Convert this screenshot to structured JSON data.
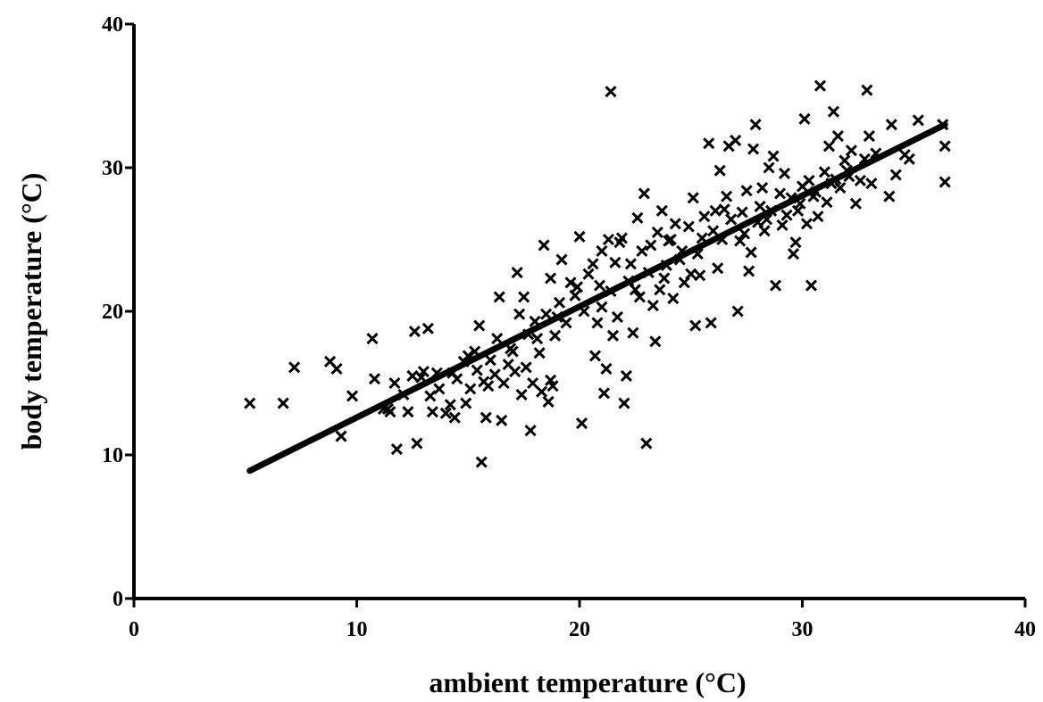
{
  "chart_data": {
    "type": "scatter",
    "title": "",
    "xlabel": "ambient temperature (°C)",
    "ylabel": "body temperature (°C)",
    "xlim": [
      0,
      40
    ],
    "ylim": [
      0,
      40
    ],
    "x_ticks": [
      0,
      10,
      20,
      30,
      40
    ],
    "y_ticks": [
      0,
      10,
      20,
      30,
      40
    ],
    "x_tick_labels": [
      "0",
      "10",
      "20",
      "30",
      "40"
    ],
    "y_tick_labels": [
      "0",
      "10",
      "20",
      "30",
      "40"
    ],
    "grid": false,
    "marker": "x-cross",
    "marker_color": "#000000",
    "points": [
      [
        5.2,
        13.6
      ],
      [
        6.7,
        13.6
      ],
      [
        7.2,
        16.1
      ],
      [
        8.8,
        16.5
      ],
      [
        9.1,
        16.0
      ],
      [
        9.3,
        11.3
      ],
      [
        9.8,
        14.1
      ],
      [
        10.7,
        18.1
      ],
      [
        10.8,
        15.3
      ],
      [
        11.2,
        13.2
      ],
      [
        11.5,
        13.0
      ],
      [
        11.7,
        15.0
      ],
      [
        11.8,
        10.4
      ],
      [
        12.1,
        14.2
      ],
      [
        12.3,
        13.0
      ],
      [
        12.5,
        15.5
      ],
      [
        12.6,
        18.6
      ],
      [
        12.7,
        10.8
      ],
      [
        13.0,
        15.8
      ],
      [
        13.2,
        18.8
      ],
      [
        13.3,
        14.1
      ],
      [
        13.4,
        13.0
      ],
      [
        13.6,
        15.7
      ],
      [
        13.7,
        14.6
      ],
      [
        14.0,
        12.9
      ],
      [
        14.2,
        13.5
      ],
      [
        14.4,
        12.6
      ],
      [
        14.5,
        15.3
      ],
      [
        14.8,
        16.5
      ],
      [
        14.9,
        13.6
      ],
      [
        15.0,
        16.9
      ],
      [
        15.1,
        14.6
      ],
      [
        15.3,
        17.2
      ],
      [
        15.4,
        15.9
      ],
      [
        15.5,
        19.0
      ],
      [
        15.6,
        9.5
      ],
      [
        15.7,
        15.1
      ],
      [
        15.8,
        12.6
      ],
      [
        16.0,
        16.6
      ],
      [
        16.2,
        15.6
      ],
      [
        16.3,
        18.1
      ],
      [
        16.4,
        21.0
      ],
      [
        16.5,
        12.4
      ],
      [
        16.6,
        15.0
      ],
      [
        16.8,
        16.3
      ],
      [
        17.0,
        17.2
      ],
      [
        17.2,
        22.7
      ],
      [
        17.3,
        19.8
      ],
      [
        17.4,
        14.2
      ],
      [
        17.5,
        21.0
      ],
      [
        17.6,
        16.1
      ],
      [
        17.7,
        18.4
      ],
      [
        17.8,
        11.7
      ],
      [
        17.9,
        15.0
      ],
      [
        18.0,
        19.3
      ],
      [
        18.2,
        17.1
      ],
      [
        18.3,
        14.4
      ],
      [
        18.4,
        24.6
      ],
      [
        18.5,
        19.8
      ],
      [
        18.6,
        13.7
      ],
      [
        18.7,
        22.3
      ],
      [
        18.8,
        14.8
      ],
      [
        18.9,
        18.3
      ],
      [
        19.1,
        20.6
      ],
      [
        19.2,
        23.6
      ],
      [
        19.4,
        19.2
      ],
      [
        19.6,
        22.0
      ],
      [
        19.8,
        21.1
      ],
      [
        20.0,
        25.2
      ],
      [
        20.1,
        12.2
      ],
      [
        20.2,
        20.0
      ],
      [
        20.4,
        22.6
      ],
      [
        20.6,
        23.3
      ],
      [
        20.7,
        16.9
      ],
      [
        20.8,
        19.2
      ],
      [
        21.0,
        24.2
      ],
      [
        21.1,
        14.3
      ],
      [
        21.2,
        16.0
      ],
      [
        21.4,
        21.4
      ],
      [
        21.4,
        35.3
      ],
      [
        21.5,
        18.3
      ],
      [
        21.6,
        23.4
      ],
      [
        21.7,
        19.6
      ],
      [
        21.8,
        24.8
      ],
      [
        22.0,
        13.6
      ],
      [
        22.1,
        15.5
      ],
      [
        22.2,
        22.1
      ],
      [
        22.4,
        18.5
      ],
      [
        22.6,
        26.5
      ],
      [
        22.7,
        21.0
      ],
      [
        22.8,
        24.2
      ],
      [
        22.9,
        28.2
      ],
      [
        23.0,
        10.8
      ],
      [
        23.1,
        22.7
      ],
      [
        23.2,
        24.6
      ],
      [
        23.3,
        20.4
      ],
      [
        23.4,
        17.9
      ],
      [
        23.5,
        25.5
      ],
      [
        23.7,
        27.0
      ],
      [
        23.8,
        22.3
      ],
      [
        24.0,
        24.9
      ],
      [
        24.2,
        20.9
      ],
      [
        24.3,
        26.1
      ],
      [
        24.5,
        23.6
      ],
      [
        24.7,
        22.0
      ],
      [
        24.9,
        25.9
      ],
      [
        25.1,
        27.9
      ],
      [
        25.2,
        19.0
      ],
      [
        25.3,
        24.0
      ],
      [
        25.4,
        22.5
      ],
      [
        25.6,
        26.6
      ],
      [
        25.8,
        31.7
      ],
      [
        25.9,
        19.2
      ],
      [
        26.0,
        25.6
      ],
      [
        26.1,
        27.0
      ],
      [
        26.2,
        23.0
      ],
      [
        26.3,
        29.8
      ],
      [
        26.4,
        25.0
      ],
      [
        26.6,
        28.0
      ],
      [
        26.7,
        31.5
      ],
      [
        26.8,
        26.4
      ],
      [
        27.0,
        31.9
      ],
      [
        27.1,
        20.0
      ],
      [
        27.2,
        24.9
      ],
      [
        27.3,
        26.9
      ],
      [
        27.5,
        28.4
      ],
      [
        27.6,
        22.8
      ],
      [
        27.7,
        24.1
      ],
      [
        27.8,
        31.3
      ],
      [
        27.9,
        33.0
      ],
      [
        28.0,
        26.2
      ],
      [
        28.1,
        27.3
      ],
      [
        28.2,
        28.6
      ],
      [
        28.3,
        25.6
      ],
      [
        28.5,
        30.0
      ],
      [
        28.6,
        27.0
      ],
      [
        28.7,
        30.8
      ],
      [
        28.8,
        21.8
      ],
      [
        29.0,
        28.2
      ],
      [
        29.2,
        29.6
      ],
      [
        29.3,
        26.7
      ],
      [
        29.5,
        27.9
      ],
      [
        29.6,
        24.0
      ],
      [
        29.7,
        24.8
      ],
      [
        29.9,
        27.5
      ],
      [
        30.0,
        28.7
      ],
      [
        30.1,
        33.4
      ],
      [
        30.2,
        26.1
      ],
      [
        30.3,
        29.1
      ],
      [
        30.4,
        21.8
      ],
      [
        30.5,
        28.0
      ],
      [
        30.7,
        26.6
      ],
      [
        30.8,
        35.7
      ],
      [
        31.0,
        29.7
      ],
      [
        31.1,
        27.6
      ],
      [
        31.2,
        31.5
      ],
      [
        31.4,
        33.9
      ],
      [
        31.5,
        29.2
      ],
      [
        31.6,
        32.2
      ],
      [
        31.7,
        28.6
      ],
      [
        31.9,
        30.5
      ],
      [
        32.0,
        29.8
      ],
      [
        32.2,
        31.2
      ],
      [
        32.4,
        27.5
      ],
      [
        32.6,
        29.1
      ],
      [
        32.8,
        30.6
      ],
      [
        32.9,
        35.4
      ],
      [
        33.0,
        32.2
      ],
      [
        33.1,
        28.9
      ],
      [
        33.3,
        31.0
      ],
      [
        33.9,
        28.0
      ],
      [
        34.0,
        33.0
      ],
      [
        34.2,
        29.5
      ],
      [
        34.6,
        30.9
      ],
      [
        34.8,
        30.6
      ],
      [
        35.2,
        33.3
      ],
      [
        36.3,
        33.0
      ],
      [
        36.4,
        31.5
      ],
      [
        36.4,
        29.0
      ],
      [
        11.4,
        13.2
      ],
      [
        12.9,
        15.4
      ],
      [
        14.3,
        15.7
      ],
      [
        15.9,
        14.8
      ],
      [
        17.1,
        15.8
      ],
      [
        18.1,
        18.1
      ],
      [
        19.0,
        19.6
      ],
      [
        19.9,
        21.7
      ],
      [
        20.9,
        21.8
      ],
      [
        21.3,
        25.0
      ],
      [
        21.9,
        25.1
      ],
      [
        22.3,
        23.3
      ],
      [
        22.5,
        21.5
      ],
      [
        23.6,
        21.5
      ],
      [
        24.1,
        25.0
      ],
      [
        24.6,
        24.2
      ],
      [
        25.0,
        22.6
      ],
      [
        25.5,
        25.1
      ],
      [
        26.5,
        27.1
      ],
      [
        27.4,
        25.4
      ],
      [
        28.4,
        26.4
      ],
      [
        29.1,
        26.0
      ],
      [
        29.8,
        27.0
      ],
      [
        30.6,
        28.3
      ],
      [
        31.3,
        28.9
      ],
      [
        32.1,
        29.4
      ],
      [
        23.9,
        23.2
      ],
      [
        21.0,
        20.3
      ],
      [
        18.7,
        15.2
      ],
      [
        16.9,
        17.4
      ]
    ],
    "fit_line": [
      [
        5.2,
        8.9
      ],
      [
        36.4,
        33.0
      ]
    ]
  }
}
